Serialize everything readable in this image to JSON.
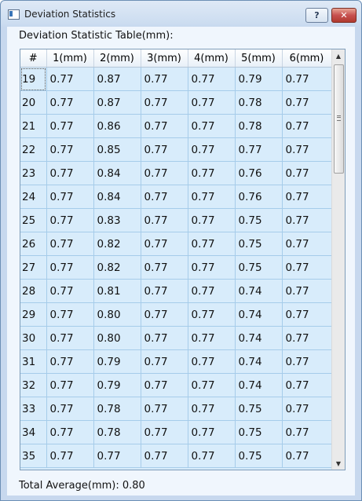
{
  "window": {
    "title": "Deviation Statistics",
    "help_label": "?",
    "close_label": "✕"
  },
  "section_label": "Deviation Statistic Table(mm):",
  "table": {
    "headers": [
      "#",
      "1(mm)",
      "2(mm)",
      "3(mm)",
      "4(mm)",
      "5(mm)",
      "6(mm)"
    ],
    "rows": [
      [
        "19",
        "0.77",
        "0.87",
        "0.77",
        "0.77",
        "0.79",
        "0.77"
      ],
      [
        "20",
        "0.77",
        "0.87",
        "0.77",
        "0.77",
        "0.78",
        "0.77"
      ],
      [
        "21",
        "0.77",
        "0.86",
        "0.77",
        "0.77",
        "0.78",
        "0.77"
      ],
      [
        "22",
        "0.77",
        "0.85",
        "0.77",
        "0.77",
        "0.77",
        "0.77"
      ],
      [
        "23",
        "0.77",
        "0.84",
        "0.77",
        "0.77",
        "0.76",
        "0.77"
      ],
      [
        "24",
        "0.77",
        "0.84",
        "0.77",
        "0.77",
        "0.76",
        "0.77"
      ],
      [
        "25",
        "0.77",
        "0.83",
        "0.77",
        "0.77",
        "0.75",
        "0.77"
      ],
      [
        "26",
        "0.77",
        "0.82",
        "0.77",
        "0.77",
        "0.75",
        "0.77"
      ],
      [
        "27",
        "0.77",
        "0.82",
        "0.77",
        "0.77",
        "0.75",
        "0.77"
      ],
      [
        "28",
        "0.77",
        "0.81",
        "0.77",
        "0.77",
        "0.74",
        "0.77"
      ],
      [
        "29",
        "0.77",
        "0.80",
        "0.77",
        "0.77",
        "0.74",
        "0.77"
      ],
      [
        "30",
        "0.77",
        "0.80",
        "0.77",
        "0.77",
        "0.74",
        "0.77"
      ],
      [
        "31",
        "0.77",
        "0.79",
        "0.77",
        "0.77",
        "0.74",
        "0.77"
      ],
      [
        "32",
        "0.77",
        "0.79",
        "0.77",
        "0.77",
        "0.74",
        "0.77"
      ],
      [
        "33",
        "0.77",
        "0.78",
        "0.77",
        "0.77",
        "0.75",
        "0.77"
      ],
      [
        "34",
        "0.77",
        "0.78",
        "0.77",
        "0.77",
        "0.75",
        "0.77"
      ],
      [
        "35",
        "0.77",
        "0.77",
        "0.77",
        "0.77",
        "0.75",
        "0.77"
      ]
    ]
  },
  "scrollbar": {
    "up_icon": "▲",
    "down_icon": "▼"
  },
  "footer": {
    "total_average": "Total Average(mm): 0.80"
  }
}
